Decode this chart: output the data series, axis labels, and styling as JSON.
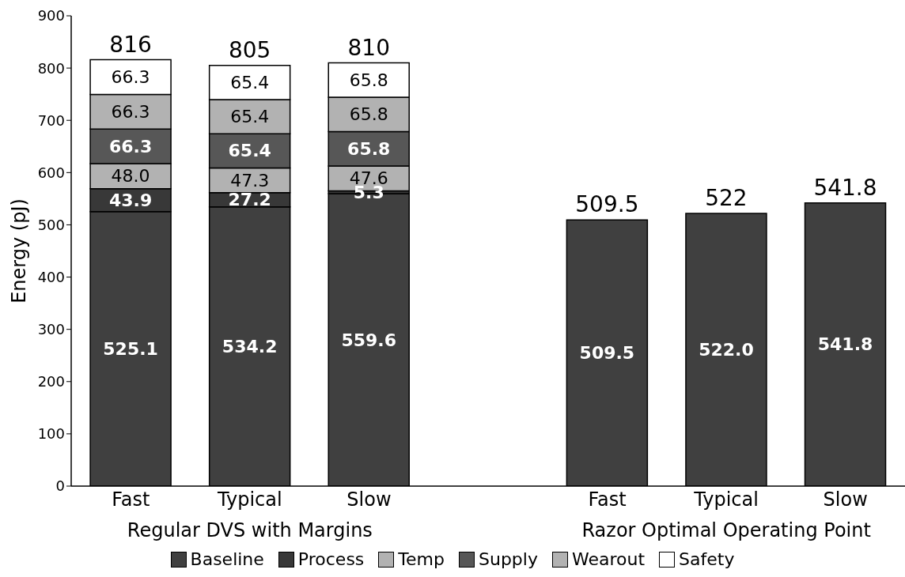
{
  "chart_data": {
    "type": "bar",
    "stacked": true,
    "categories": [
      "Fast",
      "Typical",
      "Slow",
      null,
      "Fast",
      "Typical",
      "Slow"
    ],
    "ylabel": "Energy (pJ)",
    "ylim": [
      0,
      900
    ],
    "yticks": [
      0,
      100,
      200,
      300,
      400,
      500,
      600,
      700,
      800,
      900
    ],
    "grid": false,
    "legend": "bottom",
    "annotations": [
      "Regular DVS with Margins",
      "Razor Optimal Operating Point"
    ],
    "totals": [
      "816",
      "805",
      "810",
      null,
      "509.5",
      "522",
      "541.8"
    ],
    "series": [
      {
        "name": "Baseline",
        "color": "#404040",
        "values": [
          525.1,
          534.2,
          559.6,
          null,
          509.5,
          522.0,
          541.8
        ],
        "value_labels": [
          "525.1",
          "534.2",
          "559.6",
          null,
          "509.5",
          "522.0",
          "541.8"
        ]
      },
      {
        "name": "Process",
        "color": "#383838",
        "values": [
          43.9,
          27.2,
          5.3,
          null,
          null,
          null,
          null
        ],
        "value_labels": [
          "43.9",
          "27.2",
          "5.3",
          null,
          null,
          null,
          null
        ]
      },
      {
        "name": "Temp",
        "color": "#b2b2b2",
        "values": [
          48.0,
          47.3,
          47.6,
          null,
          null,
          null,
          null
        ],
        "value_labels": [
          "48.0",
          "47.3",
          "47.6",
          null,
          null,
          null,
          null
        ]
      },
      {
        "name": "Supply",
        "color": "#575757",
        "values": [
          66.3,
          65.4,
          65.8,
          null,
          null,
          null,
          null
        ],
        "value_labels": [
          "66.3",
          "65.4",
          "65.8",
          null,
          null,
          null,
          null
        ]
      },
      {
        "name": "Wearout",
        "color": "#b2b2b2",
        "values": [
          66.3,
          65.4,
          65.8,
          null,
          null,
          null,
          null
        ],
        "value_labels": [
          "66.3",
          "65.4",
          "65.8",
          null,
          null,
          null,
          null
        ]
      },
      {
        "name": "Safety",
        "color": "#ffffff",
        "values": [
          66.3,
          65.4,
          65.8,
          null,
          null,
          null,
          null
        ],
        "value_labels": [
          "66.3",
          "65.4",
          "65.8",
          null,
          null,
          null,
          null
        ]
      }
    ]
  }
}
